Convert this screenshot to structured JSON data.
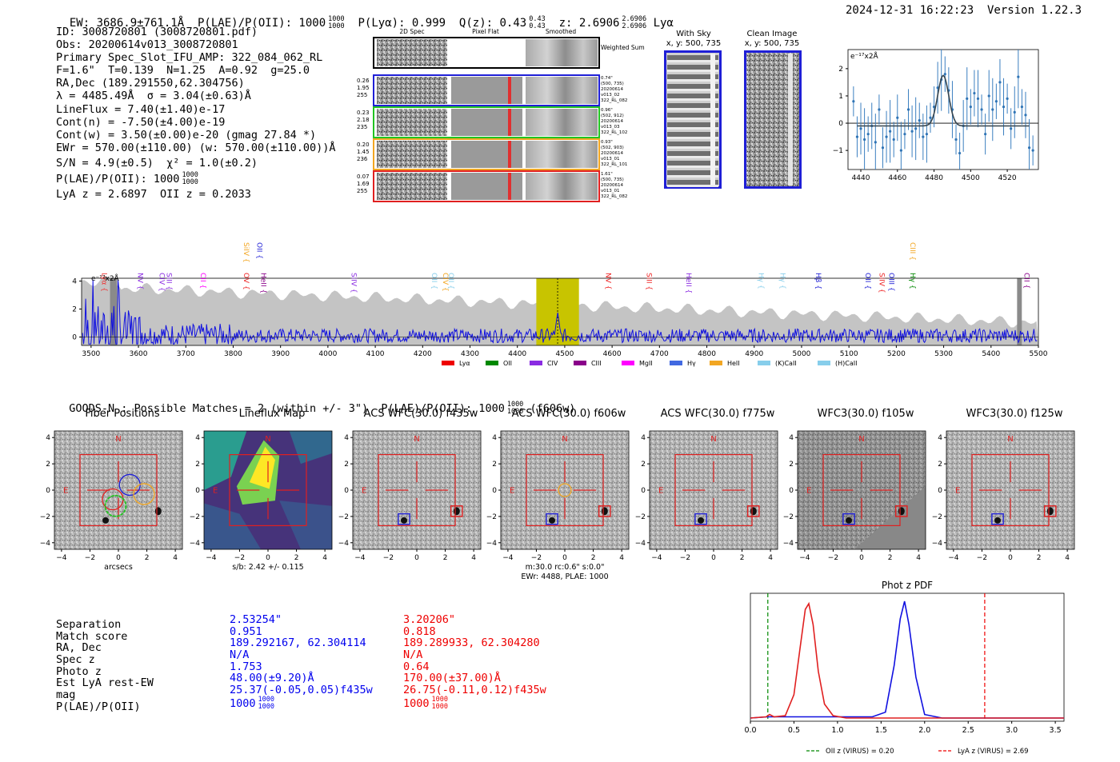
{
  "header": {
    "line": "EW: 3686.9±761.1Å  P(LAE)/P(OII): 1000",
    "plae_frac": [
      "1000",
      "1000"
    ],
    "plya": "P(Lyα): 0.999  Q(z): 0.43",
    "qz_frac": [
      "0.43",
      "0.43"
    ],
    "z": "z: 2.6906",
    "z_frac": [
      "2.6906",
      "2.6906"
    ],
    "z_suffix": "Lyα",
    "timestamp": "2024-12-31 16:22:23  Version 1.22.3"
  },
  "info": {
    "lines": [
      "ID: 3008720801 (3008720801.pdf)",
      "Obs: 20200614v013_3008720801",
      "Primary Spec_Slot_IFU_AMP: 322_084_062_RL",
      "F=1.6\"  T=0.139  N=1.25  A=0.92  g=25.0",
      "RA,Dec (189.291550,62.304756)",
      "λ = 4485.49Å  σ = 3.04(±0.63)Å",
      "LineFlux = 7.40(±1.40)e-17",
      "Cont(n) = -7.50(±4.00)e-19",
      "Cont(w) = 3.50(±0.00)e-20 (gmag 27.84 *)",
      "EWr = 570.00(±110.00) (w: 570.00(±110.00))Å",
      "S/N = 4.9(±0.5)  χ² = 1.0(±0.2)"
    ],
    "plae_line": "P(LAE)/P(OII): 1000",
    "plae_frac": [
      "1000",
      "1000"
    ],
    "lya_line": "LyA z = 2.6897  OII z = 0.2033"
  },
  "cutouts2d": {
    "headers": [
      "2D Spec",
      "Pixel Flat",
      "Smoothed"
    ],
    "weighted": "Weighted Sum",
    "rows": [
      {
        "nums": [
          "0.26",
          "1.95",
          "255"
        ],
        "meta": [
          "0.74\"",
          "(500, 735)",
          "20200614",
          "v013_02",
          "322_RL_082"
        ],
        "color": "#1f1fd6"
      },
      {
        "nums": [
          "0.23",
          "2.18",
          "235"
        ],
        "meta": [
          "0.96\"",
          "(502, 912)",
          "20200614",
          "v013_03",
          "322_RL_102"
        ],
        "color": "#22c422"
      },
      {
        "nums": [
          "0.20",
          "1.45",
          "236"
        ],
        "meta": [
          "0.93\"",
          "(502, 903)",
          "20200614",
          "v013_01",
          "322_RL_101"
        ],
        "color": "#f2a622"
      },
      {
        "nums": [
          "0.07",
          "1.69",
          "255"
        ],
        "meta": [
          "1.61\"",
          "(500, 735)",
          "20200614",
          "v013_01",
          "322_RL_082"
        ],
        "color": "#e02020"
      }
    ]
  },
  "sky": {
    "title1": "With Sky",
    "title2": "x, y: 500, 735"
  },
  "clean": {
    "title1": "Clean Image",
    "title2": "x, y: 500, 735"
  },
  "zoom": {
    "unit": "e⁻¹⁷x2Å",
    "xticks": [
      "4440",
      "4460",
      "4480",
      "4500",
      "4520"
    ],
    "yticks": [
      "2",
      "1",
      "0",
      "−1"
    ]
  },
  "fullspec": {
    "unit": "e⁻¹⁷x2Å",
    "yticks": [
      "4",
      "2",
      "0"
    ],
    "xticks": [
      "3500",
      "3600",
      "3700",
      "3800",
      "3900",
      "4000",
      "4100",
      "4200",
      "4300",
      "4400",
      "4500",
      "4600",
      "4700",
      "4800",
      "4900",
      "5000",
      "5100",
      "5200",
      "5300",
      "5400",
      "5500"
    ],
    "lines": [
      {
        "label": "Lyα",
        "x": 3518,
        "c": "#ee3333",
        "hi": false
      },
      {
        "label": "NV",
        "x": 3594,
        "c": "#8a2be2",
        "hi": false
      },
      {
        "label": "CIV",
        "x": 3640,
        "c": "#8a2be2",
        "hi": false
      },
      {
        "label": "SiII",
        "x": 3655,
        "c": "#8a2be2",
        "hi": false
      },
      {
        "label": "CII",
        "x": 3727,
        "c": "#ff00ff",
        "hi": false
      },
      {
        "label": "SiIV",
        "x": 3818,
        "c": "#f2a622",
        "hi": true
      },
      {
        "label": "OII",
        "x": 3846,
        "c": "#1f1fd6",
        "hi": true
      },
      {
        "label": "OV",
        "x": 3818,
        "c": "#ee2222",
        "hi": false
      },
      {
        "label": "HeII",
        "x": 3854,
        "c": "#8a008a",
        "hi": false
      },
      {
        "label": "SiIV",
        "x": 4045,
        "c": "#8a2be2",
        "hi": false
      },
      {
        "label": "OII",
        "x": 4215,
        "c": "#87ceeb",
        "hi": false
      },
      {
        "label": "CIV",
        "x": 4238,
        "c": "#f2a622",
        "hi": false
      },
      {
        "label": "OII",
        "x": 4250,
        "c": "#87ceeb",
        "hi": false
      },
      {
        "label": "NV",
        "x": 4582,
        "c": "#ee2222",
        "hi": false
      },
      {
        "label": "SiII",
        "x": 4668,
        "c": "#ee2222",
        "hi": false
      },
      {
        "label": "HeII",
        "x": 4752,
        "c": "#8a2be2",
        "hi": false
      },
      {
        "label": "Hγ",
        "x": 4905,
        "c": "#87ceeb",
        "hi": false
      },
      {
        "label": "Hγ",
        "x": 4950,
        "c": "#87ceeb",
        "hi": false
      },
      {
        "label": "Hβ",
        "x": 5025,
        "c": "#1f1fd6",
        "hi": false
      },
      {
        "label": "OII",
        "x": 5130,
        "c": "#1f1fd6",
        "hi": false
      },
      {
        "label": "SiIV",
        "x": 5160,
        "c": "#ee2222",
        "hi": false
      },
      {
        "label": "OIII",
        "x": 5180,
        "c": "#1f1fd6",
        "hi": false
      },
      {
        "label": "CIII",
        "x": 5225,
        "c": "#f2a622",
        "hi": true
      },
      {
        "label": "Hγ",
        "x": 5225,
        "c": "#008800",
        "hi": false
      },
      {
        "label": "CII",
        "x": 5465,
        "c": "#8a008a",
        "hi": false
      }
    ],
    "legend": [
      {
        "label": "Lyα",
        "c": "#ee0000"
      },
      {
        "label": "OII",
        "c": "#008800"
      },
      {
        "label": "CIV",
        "c": "#8a2be2"
      },
      {
        "label": "CIII",
        "c": "#8a008a"
      },
      {
        "label": "MgII",
        "c": "#ff00ff"
      },
      {
        "label": "Hγ",
        "c": "#4169e1"
      },
      {
        "label": "HeII",
        "c": "#f2a622"
      },
      {
        "label": "(K)CaII",
        "c": "#87ceeb"
      },
      {
        "label": "(H)CaII",
        "c": "#87ceeb"
      }
    ]
  },
  "goods": {
    "line": "GOODS-N : Possible Matches = 2 (within +/- 3\")  P(LAE)/P(OII): 1000",
    "frac": [
      "1000",
      "1000"
    ],
    "suffix": "(f606w)"
  },
  "panels": [
    {
      "title": "Fiber Positions",
      "sub1": "arcsecs",
      "sub2": ""
    },
    {
      "title": "Lineflux Map",
      "sub1": "s/b: 2.42 +/- 0.115",
      "sub2": ""
    },
    {
      "title": "ACS WFC(30.0) f435w",
      "sub1": "",
      "sub2": ""
    },
    {
      "title": "ACS WFC(30.0) f606w",
      "sub1": "m:30.0 rc:0.6\"  s:0.0\"",
      "sub2": "EWr: 4488, PLAE: 1000"
    },
    {
      "title": "ACS WFC(30.0) f775w",
      "sub1": "",
      "sub2": ""
    },
    {
      "title": "WFC3(30.0) f105w",
      "sub1": "",
      "sub2": ""
    },
    {
      "title": "WFC3(30.0) f125w",
      "sub1": "",
      "sub2": ""
    }
  ],
  "panel_axes": {
    "yticks": [
      "4",
      "2",
      "0",
      "−2",
      "−4"
    ],
    "xticks": [
      "−4",
      "−2",
      "0",
      "2",
      "4"
    ],
    "N": "N",
    "E": "E"
  },
  "table": {
    "labels": [
      "Separation",
      "Match score",
      "RA, Dec",
      "Spec z",
      "Photo z",
      "Est LyA rest-EW",
      "mag",
      "P(LAE)/P(OII)"
    ],
    "blue": [
      "2.53254\"",
      "0.951",
      "189.292167, 62.304114",
      "N/A",
      "1.753",
      "48.00(±9.20)Å",
      "25.37(-0.05,0.05)f435w",
      "1000"
    ],
    "red": [
      "3.20206\"",
      "0.818",
      "189.289933, 62.304280",
      "N/A",
      "0.64",
      "170.00(±37.00)Å",
      "26.75(-0.11,0.12)f435w",
      "1000"
    ],
    "frac": [
      "1000",
      "1000"
    ]
  },
  "chart_data": [
    {
      "type": "line",
      "title": "Phot z PDF",
      "xlabel": "",
      "ylabel": "",
      "xlim": [
        0.0,
        3.6
      ],
      "xticks": [
        "0.0",
        "0.5",
        "1.0",
        "1.5",
        "2.0",
        "2.5",
        "3.0",
        "3.5"
      ],
      "series": [
        {
          "name": "blue",
          "x": [
            0,
            0.2,
            1.4,
            1.55,
            1.65,
            1.72,
            1.77,
            1.82,
            1.9,
            2.0,
            2.2,
            3.6
          ],
          "values": [
            0,
            0.01,
            0.01,
            0.05,
            0.45,
            0.85,
            1.0,
            0.8,
            0.35,
            0.03,
            0.0,
            0.0
          ]
        },
        {
          "name": "red",
          "x": [
            0,
            0.18,
            0.22,
            0.27,
            0.4,
            0.5,
            0.57,
            0.63,
            0.67,
            0.72,
            0.78,
            0.85,
            0.95,
            1.1,
            3.6
          ],
          "values": [
            0,
            0.01,
            0.03,
            0.01,
            0.02,
            0.2,
            0.6,
            0.93,
            0.98,
            0.8,
            0.4,
            0.12,
            0.02,
            0.0,
            0.0
          ]
        }
      ],
      "vlines": [
        {
          "x": 0.2,
          "label": "OII z (VIRUS) = 0.20",
          "color": "#008800"
        },
        {
          "x": 2.69,
          "label": "LyA z (VIRUS) = 2.69",
          "color": "#ee0000"
        }
      ]
    },
    {
      "type": "scatter",
      "title": "",
      "ylabel": "e⁻¹⁷x2Å",
      "xlim": [
        4433,
        4537
      ],
      "ylim": [
        -1.7,
        2.7
      ],
      "x": [
        4436,
        4438,
        4440,
        4442,
        4444,
        4446,
        4448,
        4450,
        4452,
        4454,
        4456,
        4458,
        4460,
        4462,
        4464,
        4466,
        4468,
        4470,
        4472,
        4474,
        4476,
        4478,
        4480,
        4482,
        4484,
        4486,
        4488,
        4490,
        4492,
        4494,
        4496,
        4498,
        4500,
        4502,
        4504,
        4506,
        4508,
        4510,
        4512,
        4514,
        4516,
        4518,
        4520,
        4522,
        4524,
        4526,
        4528,
        4530,
        4532,
        4534
      ],
      "values": [
        0.8,
        -0.5,
        -0.2,
        -0.6,
        -0.4,
        -0.1,
        -0.7,
        0.5,
        -0.9,
        -0.5,
        -0.3,
        -0.6,
        0.2,
        -1.0,
        -0.4,
        0.5,
        -0.3,
        -0.2,
        0.1,
        -0.5,
        -0.4,
        0.2,
        0.6,
        1.3,
        1.6,
        1.8,
        1.2,
        0.5,
        -0.6,
        -1.1,
        -0.1,
        0.9,
        0.6,
        1.1,
        0.9,
        0.5,
        -0.4,
        1.0,
        0.5,
        0.8,
        1.5,
        0.6,
        0.9,
        -0.2,
        0.4,
        1.7,
        0.6,
        0.3,
        -0.9,
        -1.0
      ],
      "model_peak": 4485,
      "model_amp": 1.85,
      "model_sigma": 3.0,
      "model_base": -0.1
    }
  ]
}
